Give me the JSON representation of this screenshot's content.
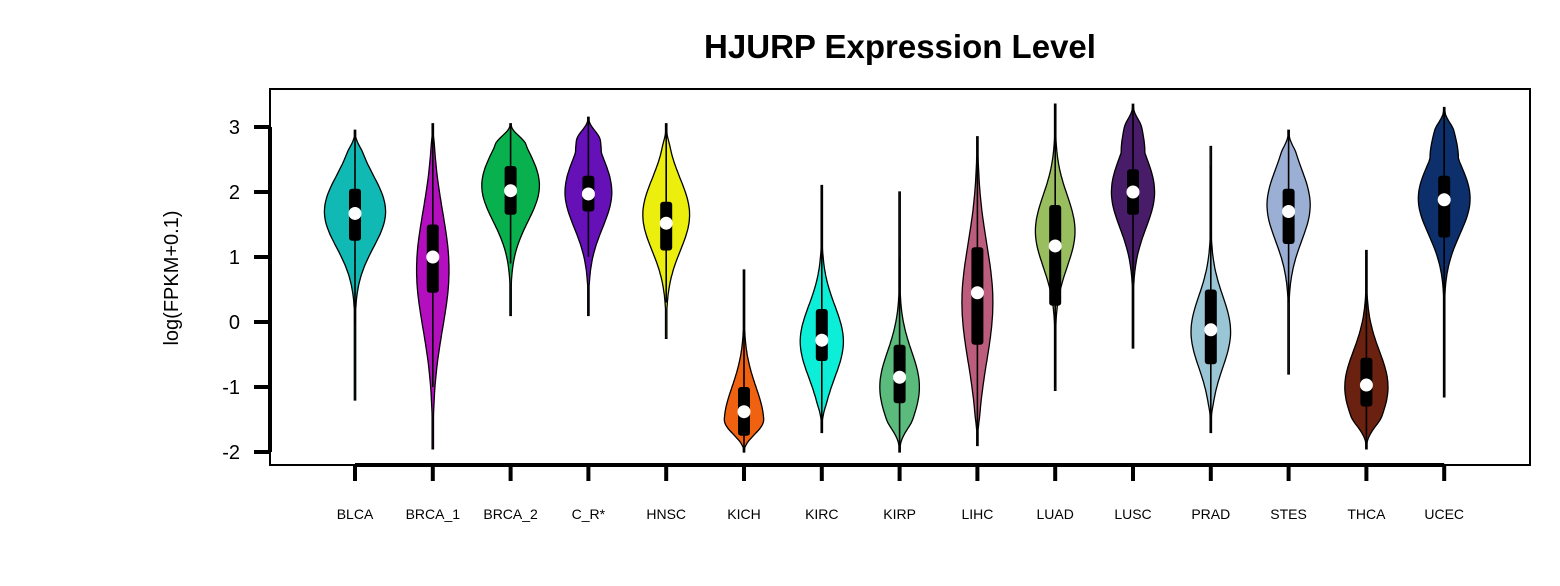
{
  "chart_data": {
    "type": "violin",
    "title": "HJURP Expression Level",
    "xlabel": "",
    "ylabel": "log(FPKM+0.1)",
    "ylim": [
      -2.2,
      3.6
    ],
    "yticks": [
      -2,
      -1,
      0,
      1,
      2,
      3
    ],
    "categories": [
      "BLCA",
      "BRCA_1",
      "BRCA_2",
      "C_R*",
      "HNSC",
      "KICH",
      "KIRC",
      "KIRP",
      "LIHC",
      "LUAD",
      "LUSC",
      "PRAD",
      "STES",
      "THCA",
      "UCEC"
    ],
    "colors": [
      "#11b9b4",
      "#b30fbf",
      "#09b14e",
      "#6610b8",
      "#ecef0d",
      "#f0620f",
      "#0ceed8",
      "#5bbb7c",
      "#bd5d7d",
      "#99be60",
      "#481c69",
      "#9ac5d4",
      "#9bafd4",
      "#6b210f",
      "#0d2f6b"
    ],
    "series": [
      {
        "min": -1.2,
        "max": 2.95,
        "q1": 1.25,
        "median": 1.67,
        "q3": 2.05,
        "wlo": -0.05,
        "whi": 2.95,
        "peak": 1.7,
        "width": 0.85,
        "shape": "body"
      },
      {
        "min": -1.95,
        "max": 3.05,
        "q1": 0.45,
        "median": 1.0,
        "q3": 1.5,
        "wlo": -1.0,
        "whi": 3.05,
        "peak": 0.8,
        "width": 0.45,
        "shape": "wide"
      },
      {
        "min": 0.1,
        "max": 3.05,
        "q1": 1.65,
        "median": 2.02,
        "q3": 2.4,
        "wlo": 0.9,
        "whi": 3.05,
        "peak": 2.1,
        "width": 0.8,
        "shape": "top"
      },
      {
        "min": 0.1,
        "max": 3.15,
        "q1": 1.7,
        "median": 1.97,
        "q3": 2.25,
        "wlo": 1.0,
        "whi": 3.15,
        "peak": 2.0,
        "width": 0.65,
        "shape": "top"
      },
      {
        "min": -0.25,
        "max": 3.05,
        "q1": 1.1,
        "median": 1.52,
        "q3": 1.85,
        "wlo": 0.3,
        "whi": 3.05,
        "peak": 1.65,
        "width": 0.65,
        "shape": "body"
      },
      {
        "min": -2.0,
        "max": 0.8,
        "q1": -1.75,
        "median": -1.38,
        "q3": -1.0,
        "wlo": -2.0,
        "whi": 0.8,
        "peak": -1.55,
        "width": 0.55,
        "shape": "bottom"
      },
      {
        "min": -1.7,
        "max": 2.1,
        "q1": -0.6,
        "median": -0.28,
        "q3": 0.2,
        "wlo": -1.7,
        "whi": 2.1,
        "peak": -0.3,
        "width": 0.6,
        "shape": "body"
      },
      {
        "min": -2.0,
        "max": 2.0,
        "q1": -1.25,
        "median": -0.85,
        "q3": -0.35,
        "wlo": -2.0,
        "whi": 1.0,
        "peak": -1.0,
        "width": 0.55,
        "shape": "bottom"
      },
      {
        "min": -1.9,
        "max": 2.85,
        "q1": -0.35,
        "median": 0.45,
        "q3": 1.15,
        "wlo": -1.9,
        "whi": 2.8,
        "peak": 0.3,
        "width": 0.43,
        "shape": "wide"
      },
      {
        "min": -1.05,
        "max": 3.35,
        "q1": 0.25,
        "median": 1.17,
        "q3": 1.8,
        "wlo": -1.0,
        "whi": 3.35,
        "peak": 1.4,
        "width": 0.55,
        "shape": "body"
      },
      {
        "min": -0.4,
        "max": 3.35,
        "q1": 1.65,
        "median": 2.0,
        "q3": 2.35,
        "wlo": 0.6,
        "whi": 3.35,
        "peak": 2.0,
        "width": 0.6,
        "shape": "top"
      },
      {
        "min": -1.7,
        "max": 2.7,
        "q1": -0.65,
        "median": -0.12,
        "q3": 0.5,
        "wlo": -1.7,
        "whi": 2.4,
        "peak": -0.15,
        "width": 0.55,
        "shape": "body"
      },
      {
        "min": -0.8,
        "max": 2.95,
        "q1": 1.2,
        "median": 1.7,
        "q3": 2.05,
        "wlo": 0.3,
        "whi": 2.95,
        "peak": 1.8,
        "width": 0.6,
        "shape": "body"
      },
      {
        "min": -1.95,
        "max": 1.1,
        "q1": -1.3,
        "median": -0.97,
        "q3": -0.55,
        "wlo": -1.95,
        "whi": 1.1,
        "peak": -1.0,
        "width": 0.6,
        "shape": "bottom"
      },
      {
        "min": -1.15,
        "max": 3.3,
        "q1": 1.3,
        "median": 1.88,
        "q3": 2.25,
        "wlo": -0.5,
        "whi": 3.3,
        "peak": 1.9,
        "width": 0.72,
        "shape": "top"
      }
    ]
  }
}
